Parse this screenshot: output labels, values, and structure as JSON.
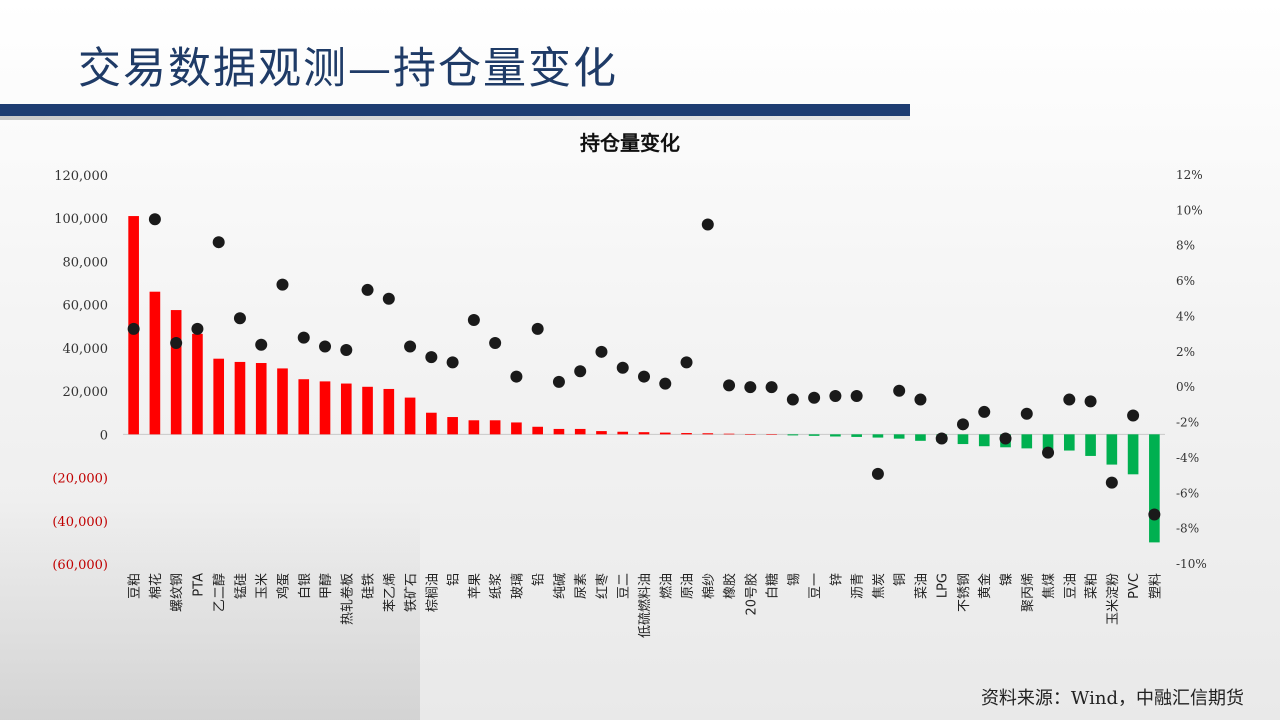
{
  "page": {
    "title": "交易数据观测—持仓量变化",
    "source": "资料来源：Wind，中融汇信期货"
  },
  "chart_data": {
    "type": "bar",
    "title": "持仓量变化",
    "categories": [
      "豆粕",
      "棉花",
      "螺纹钢",
      "PTA",
      "乙二醇",
      "锰硅",
      "玉米",
      "鸡蛋",
      "白银",
      "甲醇",
      "热轧卷板",
      "硅铁",
      "苯乙烯",
      "铁矿石",
      "棕榈油",
      "铝",
      "苹果",
      "纸浆",
      "玻璃",
      "铅",
      "纯碱",
      "尿素",
      "红枣",
      "豆二",
      "低硫燃料油",
      "燃油",
      "原油",
      "棉纱",
      "橡胶",
      "20号胶",
      "白糖",
      "锡",
      "豆一",
      "锌",
      "沥青",
      "焦炭",
      "铜",
      "菜油",
      "LPG",
      "不锈钢",
      "黄金",
      "镍",
      "聚丙烯",
      "焦煤",
      "豆油",
      "菜粕",
      "玉米淀粉",
      "PVC",
      "塑料"
    ],
    "series": [
      {
        "axis": "left",
        "values": [
          101000,
          66000,
          57500,
          46500,
          35000,
          33500,
          33000,
          30500,
          25500,
          24500,
          23500,
          22000,
          21000,
          17000,
          10000,
          8000,
          6500,
          6500,
          5500,
          3500,
          2500,
          2500,
          1500,
          1200,
          1000,
          800,
          600,
          500,
          300,
          0,
          0,
          -500,
          -700,
          -1000,
          -1200,
          -1500,
          -2000,
          -3000,
          -3500,
          -4500,
          -5500,
          -6000,
          -6500,
          -7000,
          -7500,
          -10000,
          -14000,
          -18500,
          -50000
        ]
      },
      {
        "axis": "right",
        "type": "scatter",
        "values": [
          3.3,
          9.5,
          2.5,
          3.3,
          8.2,
          3.9,
          2.4,
          5.8,
          2.8,
          2.3,
          2.1,
          5.5,
          5.0,
          2.3,
          1.7,
          1.4,
          3.8,
          2.5,
          0.6,
          3.3,
          0.3,
          0.9,
          2.0,
          1.1,
          0.6,
          0.2,
          1.4,
          9.2,
          0.1,
          0.0,
          0.0,
          -0.7,
          -0.6,
          -0.5,
          -0.5,
          -4.9,
          -0.2,
          -0.7,
          -2.9,
          -2.1,
          -1.4,
          -2.9,
          -1.5,
          -3.7,
          -0.7,
          -0.8,
          -5.4,
          -1.6,
          -7.2
        ]
      }
    ],
    "y_left": {
      "min": -60000,
      "max": 120000,
      "step": 20000,
      "ticks": [
        "(60,000)",
        "(40,000)",
        "(20,000)",
        "0",
        "20,000",
        "40,000",
        "60,000",
        "80,000",
        "100,000",
        "120,000"
      ]
    },
    "y_right": {
      "min": -10,
      "max": 12,
      "step": 2,
      "ticks": [
        "-10%",
        "-8%",
        "-6%",
        "-4%",
        "-2%",
        "0%",
        "2%",
        "4%",
        "6%",
        "8%",
        "10%",
        "12%"
      ]
    },
    "colors": {
      "positive": "#ff0000",
      "negative": "#00b050",
      "dot": "#1a1a1a",
      "negative_label": "#c00000",
      "axis_text": "#333333"
    },
    "grid": false
  }
}
